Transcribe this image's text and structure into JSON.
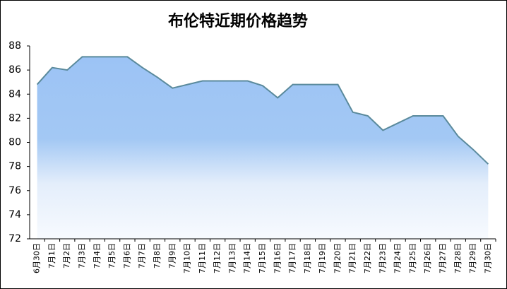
{
  "chart_data": {
    "type": "area",
    "title": "布伦特近期价格趋势",
    "categories": [
      "6月30日",
      "7月1日",
      "7月2日",
      "7月3日",
      "7月4日",
      "7月5日",
      "7月6日",
      "7月7日",
      "7月8日",
      "7月9日",
      "7月10日",
      "7月11日",
      "7月12日",
      "7月13日",
      "7月14日",
      "7月15日",
      "7月16日",
      "7月17日",
      "7月18日",
      "7月19日",
      "7月20日",
      "7月21日",
      "7月22日",
      "7月23日",
      "7月24日",
      "7月25日",
      "7月26日",
      "7月27日",
      "7月28日",
      "7月29日",
      "7月30日"
    ],
    "values": [
      84.8,
      86.2,
      86.0,
      87.1,
      87.1,
      87.1,
      87.1,
      86.2,
      85.4,
      84.5,
      84.8,
      85.1,
      85.1,
      85.1,
      85.1,
      84.7,
      83.7,
      84.8,
      84.8,
      84.8,
      84.8,
      82.5,
      82.2,
      81.0,
      81.6,
      82.2,
      82.2,
      82.2,
      80.5,
      79.4,
      78.2
    ],
    "color": "#5a8a9c",
    "ylim": [
      72,
      88
    ],
    "yticks": [
      72,
      74,
      76,
      78,
      80,
      82,
      84,
      86,
      88
    ],
    "grid": false
  }
}
